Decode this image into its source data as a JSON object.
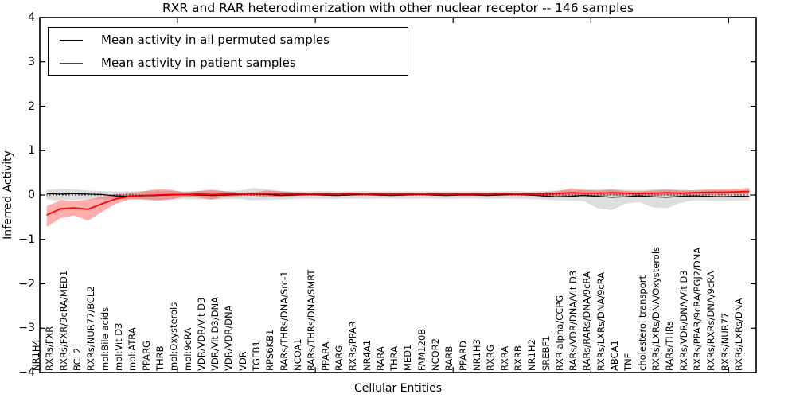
{
  "figure": {
    "title": "RXR and RAR heterodimerization with other nuclear receptor -- 146 samples"
  },
  "legend": {
    "entries": [
      {
        "label": "Mean activity in all permuted samples",
        "color": "#000000"
      },
      {
        "label": "Mean activity in patient samples",
        "color": "#ff0000"
      }
    ]
  },
  "chart_data": {
    "type": "line",
    "title": "RXR and RAR heterodimerization with other nuclear receptor -- 146 samples",
    "xlabel": "Cellular Entities",
    "ylabel": "Inferred Activity",
    "ylim": [
      -4,
      4
    ],
    "ytick_labels": [
      "4",
      "3",
      "2",
      "1",
      "0",
      "−1",
      "−2",
      "−3",
      "−4"
    ],
    "grid": false,
    "zero_line_dotted": true,
    "legend_position": "upper left",
    "categories": [
      "NR1H4",
      "RXRs/FXR",
      "RXRs/FXR/9cRA/MED1",
      "BCL2",
      "RXRs/NUR77/BCL2",
      "mol:Bile acids",
      "mol:Vit D3",
      "mol:ATRA",
      "PPARG",
      "THRB",
      "mol:Oxysterols",
      "mol:9cRA",
      "VDR/VDR/Vit D3",
      "VDR/Vit D3/DNA",
      "VDR/VDR/DNA",
      "VDR",
      "TGFB1",
      "RPS6KB1",
      "RARs/THRs/DNA/Src-1",
      "NCOA1",
      "RARs/THRs/DNA/SMRT",
      "PPARA",
      "RARG",
      "RXRs/PPAR",
      "NR4A1",
      "RARA",
      "THRA",
      "MED1",
      "FAM120B",
      "NCOR2",
      "RARB",
      "PPARD",
      "NR1H3",
      "RXRG",
      "RXRA",
      "RXRB",
      "NR1H2",
      "SREBF1",
      "RXR alpha/CCPG",
      "RARs/VDR/DNA/Vit D3",
      "RARs/RARs/DNA/9cRA",
      "RXRs/LXRs/DNA/9cRA",
      "ABCA1",
      "TNF",
      "cholesterol transport",
      "RXRs/LXRs/DNA/Oxysterols",
      "RARs/THRs",
      "RXRs/VDR/DNA/Vit D3",
      "RXRs/PPAR/9cRA/PGJ2/DNA",
      "RXRs/RXRs/DNA/9cRA",
      "RXRs/NUR77",
      "RXRs/LXRs/DNA"
    ],
    "series": [
      {
        "name": "Mean activity in all permuted samples",
        "color": "#000000",
        "band_color": "rgba(0,0,0,0.13)",
        "values": [
          0.03,
          0.02,
          0.03,
          0.02,
          0.01,
          -0.02,
          -0.03,
          -0.02,
          -0.01,
          0.0,
          0.01,
          0.0,
          -0.01,
          0.0,
          0.01,
          0.02,
          0.01,
          -0.01,
          0.0,
          0.01,
          0.0,
          -0.01,
          0.0,
          0.01,
          0.0,
          -0.01,
          0.0,
          0.01,
          0.0,
          -0.01,
          0.0,
          0.0,
          -0.01,
          0.0,
          0.01,
          0.0,
          -0.02,
          -0.04,
          -0.03,
          -0.01,
          -0.03,
          -0.05,
          -0.04,
          -0.02,
          -0.04,
          -0.05,
          -0.03,
          -0.02,
          -0.03,
          -0.04,
          -0.03,
          -0.03
        ],
        "band_upper": [
          0.12,
          0.14,
          0.13,
          0.1,
          0.09,
          0.08,
          0.08,
          0.09,
          0.1,
          0.09,
          0.08,
          0.09,
          0.1,
          0.09,
          0.1,
          0.16,
          0.13,
          0.09,
          0.08,
          0.08,
          0.09,
          0.08,
          0.08,
          0.09,
          0.08,
          0.08,
          0.08,
          0.08,
          0.08,
          0.08,
          0.08,
          0.08,
          0.08,
          0.08,
          0.09,
          0.08,
          0.09,
          0.1,
          0.1,
          0.11,
          0.13,
          0.14,
          0.12,
          0.11,
          0.13,
          0.14,
          0.12,
          0.1,
          0.1,
          0.11,
          0.1,
          0.1
        ],
        "band_lower": [
          -0.1,
          -0.13,
          -0.11,
          -0.1,
          -0.09,
          -0.1,
          -0.09,
          -0.1,
          -0.11,
          -0.1,
          -0.09,
          -0.1,
          -0.11,
          -0.09,
          -0.09,
          -0.12,
          -0.11,
          -0.1,
          -0.09,
          -0.08,
          -0.09,
          -0.09,
          -0.08,
          -0.09,
          -0.08,
          -0.08,
          -0.09,
          -0.08,
          -0.08,
          -0.09,
          -0.08,
          -0.08,
          -0.09,
          -0.08,
          -0.09,
          -0.09,
          -0.1,
          -0.12,
          -0.12,
          -0.14,
          -0.3,
          -0.34,
          -0.2,
          -0.16,
          -0.28,
          -0.3,
          -0.18,
          -0.12,
          -0.12,
          -0.14,
          -0.12,
          -0.12
        ]
      },
      {
        "name": "Mean activity in patient samples",
        "color": "#ff0000",
        "band_color": "rgba(255,0,0,0.32)",
        "values": [
          -0.45,
          -0.31,
          -0.29,
          -0.32,
          -0.2,
          -0.09,
          -0.03,
          -0.01,
          0.0,
          0.01,
          0.01,
          0.02,
          0.01,
          0.02,
          0.02,
          0.02,
          0.03,
          0.02,
          0.02,
          0.02,
          0.02,
          0.02,
          0.03,
          0.02,
          0.02,
          0.02,
          0.02,
          0.02,
          0.02,
          0.02,
          0.02,
          0.02,
          0.02,
          0.03,
          0.02,
          0.02,
          0.02,
          0.03,
          0.05,
          0.04,
          0.04,
          0.05,
          0.04,
          0.03,
          0.04,
          0.05,
          0.04,
          0.05,
          0.06,
          0.06,
          0.07,
          0.08
        ],
        "band_upper": [
          -0.25,
          -0.12,
          -0.14,
          -0.1,
          -0.04,
          0.02,
          0.04,
          0.08,
          0.13,
          0.12,
          0.06,
          0.09,
          0.12,
          0.08,
          0.06,
          0.06,
          0.1,
          0.08,
          0.06,
          0.05,
          0.05,
          0.05,
          0.06,
          0.05,
          0.05,
          0.05,
          0.05,
          0.05,
          0.05,
          0.05,
          0.05,
          0.05,
          0.05,
          0.06,
          0.05,
          0.05,
          0.06,
          0.08,
          0.15,
          0.12,
          0.1,
          0.12,
          0.09,
          0.08,
          0.1,
          0.12,
          0.1,
          0.11,
          0.13,
          0.13,
          0.14,
          0.16
        ],
        "band_lower": [
          -0.72,
          -0.52,
          -0.46,
          -0.58,
          -0.38,
          -0.2,
          -0.1,
          -0.1,
          -0.13,
          -0.1,
          -0.04,
          -0.06,
          -0.1,
          -0.04,
          -0.02,
          -0.02,
          -0.04,
          -0.03,
          -0.02,
          -0.01,
          -0.01,
          -0.01,
          0.0,
          -0.01,
          -0.01,
          -0.01,
          -0.01,
          -0.01,
          -0.01,
          -0.01,
          -0.01,
          -0.01,
          -0.01,
          0.0,
          -0.01,
          -0.01,
          -0.02,
          -0.02,
          -0.02,
          -0.02,
          -0.02,
          -0.01,
          -0.01,
          -0.02,
          -0.02,
          -0.01,
          -0.01,
          0.0,
          0.0,
          0.0,
          0.01,
          0.01
        ]
      }
    ]
  }
}
